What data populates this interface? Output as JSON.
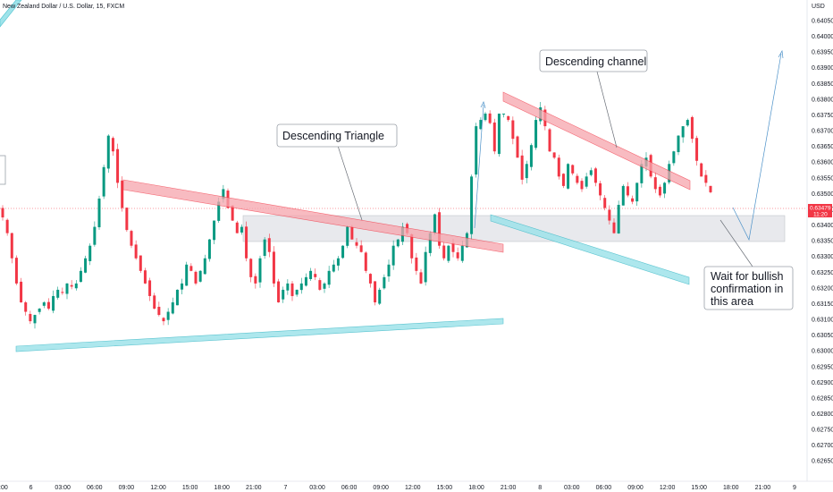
{
  "symbol_title": "New Zealand Dollar / U.S. Dollar, 15, FXCM",
  "currency_label": "USD",
  "current_price": "0.63479",
  "countdown": "11:20",
  "colors": {
    "up": "#089981",
    "down": "#f23645",
    "red_band": "#f6a5ad",
    "cyan_band": "#9fe3ea",
    "zone": "#e4e6ea",
    "arrow": "#4a90c8"
  },
  "chart_data": {
    "type": "candlestick",
    "y_axis": {
      "unit": "USD",
      "ticks": [
        "0.64050",
        "0.64000",
        "0.63950",
        "0.63900",
        "0.63850",
        "0.63800",
        "0.63750",
        "0.63700",
        "0.63650",
        "0.63600",
        "0.63550",
        "0.63500",
        "0.63450",
        "0.63400",
        "0.63350",
        "0.63300",
        "0.63250",
        "0.63200",
        "0.63150",
        "0.63100",
        "0.63050",
        "0.63000",
        "0.62950",
        "0.62900",
        "0.62850",
        "0.62800",
        "0.62750",
        "0.62700",
        "0.62650"
      ]
    },
    "x_axis": {
      "ticks": [
        ":00",
        "6",
        "03:00",
        "06:00",
        "09:00",
        "12:00",
        "15:00",
        "18:00",
        "21:00",
        "7",
        "03:00",
        "06:00",
        "09:00",
        "12:00",
        "15:00",
        "18:00",
        "21:00",
        "8",
        "03:00",
        "06:00",
        "09:00",
        "12:00",
        "15:00",
        "18:00",
        "21:00",
        "9"
      ]
    },
    "series_close_path": [
      0.6339,
      0.6334,
      0.6326,
      0.6318,
      0.6312,
      0.6309,
      0.6306,
      0.6308,
      0.631,
      0.6312,
      0.631,
      0.6314,
      0.6316,
      0.6315,
      0.6318,
      0.6317,
      0.6318,
      0.6322,
      0.6326,
      0.633,
      0.6336,
      0.6345,
      0.6355,
      0.6365,
      0.636,
      0.635,
      0.6342,
      0.6335,
      0.633,
      0.6326,
      0.6322,
      0.6318,
      0.6314,
      0.631,
      0.6308,
      0.6306,
      0.6309,
      0.6312,
      0.6316,
      0.6318,
      0.6324,
      0.6322,
      0.6318,
      0.6322,
      0.6326,
      0.6332,
      0.6338,
      0.6344,
      0.6348,
      0.6342,
      0.6338,
      0.6334,
      0.6336,
      0.6326,
      0.632,
      0.6318,
      0.6326,
      0.6332,
      0.6328,
      0.6318,
      0.6312,
      0.6316,
      0.6318,
      0.6314,
      0.6316,
      0.6318,
      0.632,
      0.6322,
      0.632,
      0.6316,
      0.6318,
      0.6322,
      0.6324,
      0.6326,
      0.633,
      0.6336,
      0.6332,
      0.633,
      0.6328,
      0.6322,
      0.6318,
      0.6312,
      0.6316,
      0.632,
      0.6324,
      0.633,
      0.6332,
      0.6336,
      0.6334,
      0.6326,
      0.6322,
      0.6318,
      0.6328,
      0.6334,
      0.634,
      0.633,
      0.6326,
      0.633,
      0.6328,
      0.6326,
      0.633,
      0.6334,
      0.6352,
      0.6368,
      0.637,
      0.6372,
      0.6369,
      0.636,
      0.6372,
      0.6372,
      0.637,
      0.6364,
      0.6358,
      0.6351,
      0.6356,
      0.6362,
      0.637,
      0.6374,
      0.6368,
      0.636,
      0.6358,
      0.6352,
      0.6349,
      0.6356,
      0.6353,
      0.635,
      0.6348,
      0.6352,
      0.6354,
      0.635,
      0.6346,
      0.6342,
      0.6338,
      0.6334,
      0.6343,
      0.6349,
      0.6346,
      0.6344,
      0.635,
      0.6356,
      0.6358,
      0.6352,
      0.6348,
      0.6346,
      0.635,
      0.6356,
      0.636,
      0.6365,
      0.6368,
      0.637,
      0.6364,
      0.6357,
      0.6352,
      0.635,
      0.6347
    ],
    "annotations": [
      {
        "id": "descending-triangle",
        "text": "Descending Triangle"
      },
      {
        "id": "descending-channel",
        "text": "Descending channel"
      },
      {
        "id": "wait-bullish",
        "lines": [
          "Wait for bullish",
          "confirmation in",
          "this area"
        ]
      }
    ],
    "grid": false,
    "legend": "none"
  }
}
